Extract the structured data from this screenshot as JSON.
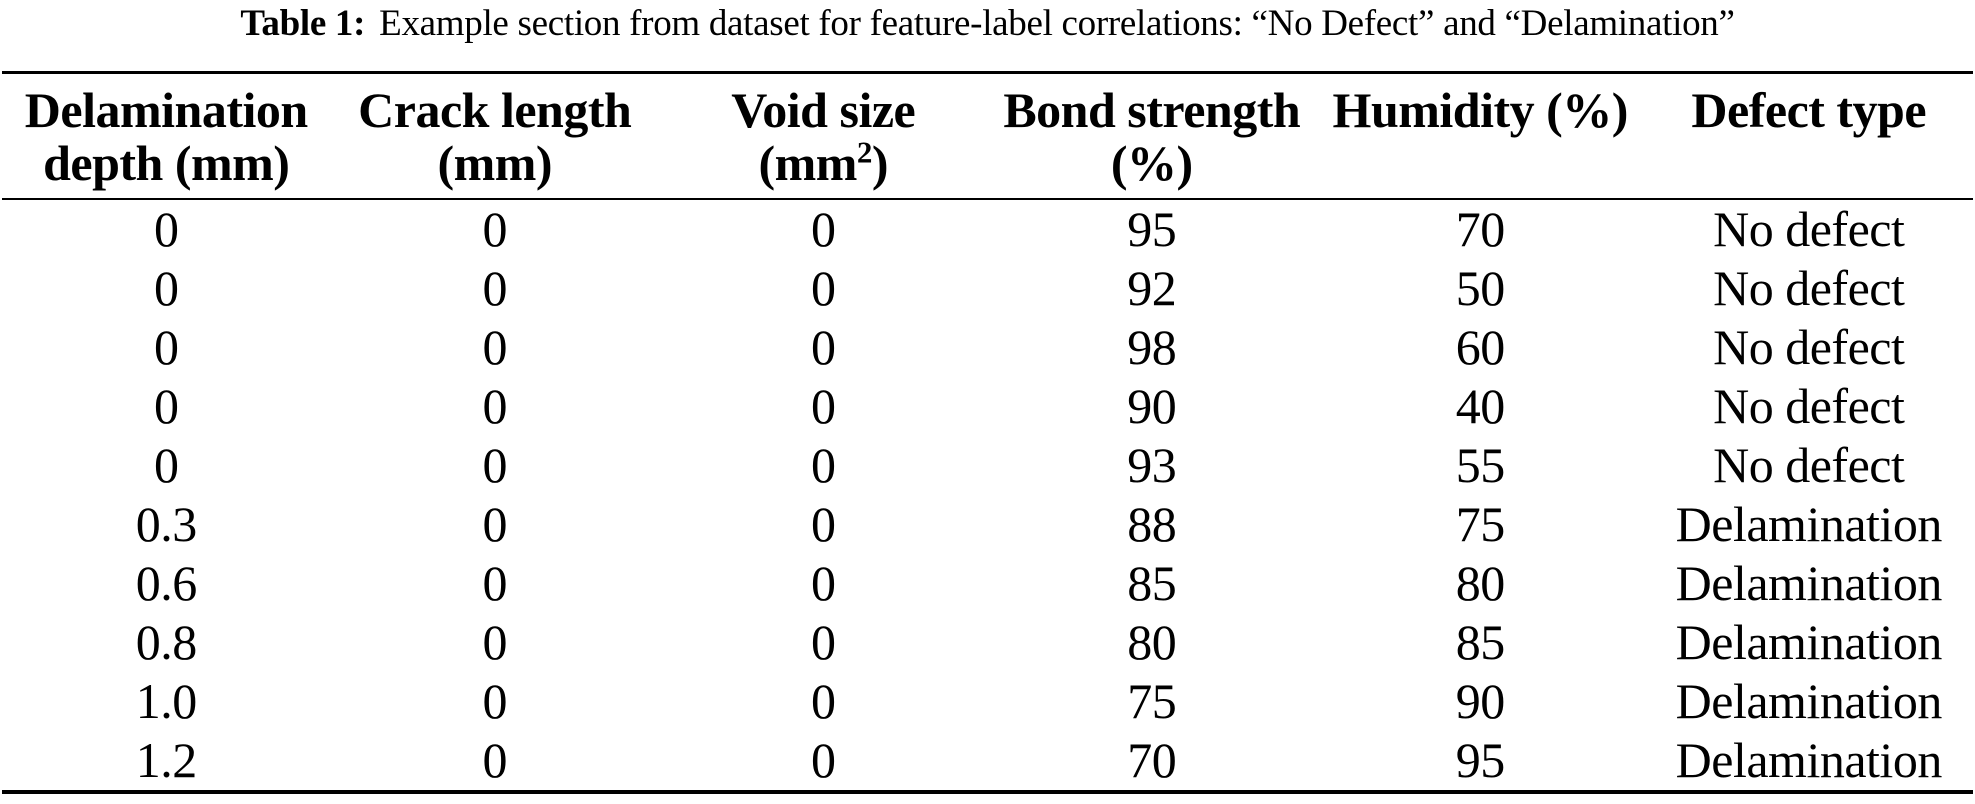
{
  "caption": {
    "label": "Table 1:",
    "text": "Example section from dataset for feature-label correlations: “No Defect” and “Delamination”"
  },
  "table": {
    "headers": [
      {
        "line1": "Delamination",
        "line2": "depth (mm)"
      },
      {
        "line1": "Crack length",
        "line2": "(mm)"
      },
      {
        "line1": "Void size",
        "line2_pre": "(mm",
        "line2_sup": "2",
        "line2_post": ")"
      },
      {
        "line1": "Bond strength",
        "line2": "(%)"
      },
      {
        "line1": "Humidity (%)",
        "line2": ""
      },
      {
        "line1": "Defect type",
        "line2": ""
      }
    ],
    "rows": [
      [
        "0",
        "0",
        "0",
        "95",
        "70",
        "No defect"
      ],
      [
        "0",
        "0",
        "0",
        "92",
        "50",
        "No defect"
      ],
      [
        "0",
        "0",
        "0",
        "98",
        "60",
        "No defect"
      ],
      [
        "0",
        "0",
        "0",
        "90",
        "40",
        "No defect"
      ],
      [
        "0",
        "0",
        "0",
        "93",
        "55",
        "No defect"
      ],
      [
        "0.3",
        "0",
        "0",
        "88",
        "75",
        "Delamination"
      ],
      [
        "0.6",
        "0",
        "0",
        "85",
        "80",
        "Delamination"
      ],
      [
        "0.8",
        "0",
        "0",
        "80",
        "85",
        "Delamination"
      ],
      [
        "1.0",
        "0",
        "0",
        "75",
        "90",
        "Delamination"
      ],
      [
        "1.2",
        "0",
        "0",
        "70",
        "95",
        "Delamination"
      ]
    ]
  }
}
